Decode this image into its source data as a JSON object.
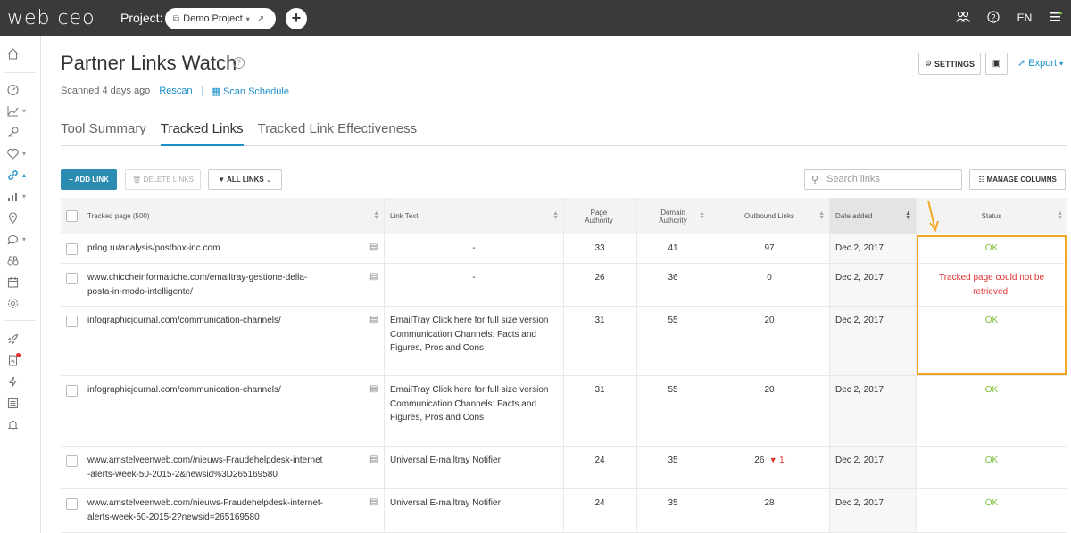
{
  "topbar": {
    "logo": "web ceo",
    "project_label": "Project:",
    "project_name": "Demo Project",
    "language": "EN"
  },
  "header": {
    "title": "Partner Links Watch",
    "scanned": "Scanned 4 days ago",
    "rescan": "Rescan",
    "separator": "|",
    "scan_schedule": "Scan Schedule",
    "settings": "SETTINGS",
    "export": "Export"
  },
  "tabs": [
    {
      "label": "Tool Summary"
    },
    {
      "label": "Tracked Links"
    },
    {
      "label": "Tracked Link Effectiveness"
    }
  ],
  "toolbar": {
    "add_link": "+ ADD LINK",
    "delete_links": "DELETE LINKS",
    "filter": "ALL LINKS",
    "search_placeholder": "Search links",
    "manage_columns": "MANAGE COLUMNS"
  },
  "table": {
    "headers": {
      "tracked_page": "Tracked page (500)",
      "link_text": "Link Text",
      "page_authority_1": "Page",
      "page_authority_2": "Authority",
      "domain_authority_1": "Domain",
      "domain_authority_2": "Authority",
      "outbound_links": "Outbound Links",
      "date_added": "Date added",
      "status": "Status"
    },
    "rows": [
      {
        "page": "prlog.ru/analysis/postbox-inc.com",
        "link_text": "-",
        "pa": "33",
        "da": "41",
        "outbound": "97",
        "date": "Dec 2, 2017",
        "status": "OK"
      },
      {
        "page": "www.chiccheinformatiche.com/emailtray-gestione-della-posta-in-modo-intelligente/",
        "link_text": "-",
        "pa": "26",
        "da": "36",
        "outbound": "0",
        "date": "Dec 2, 2017",
        "status": "Tracked page could not be retrieved."
      },
      {
        "page": "infographicjournal.com/communication-channels/",
        "link_text": "EmailTray Click here for full size version Communication Channels: Facts and Figures, Pros and Cons",
        "pa": "31",
        "da": "55",
        "outbound": "20",
        "date": "Dec 2, 2017",
        "status": "OK"
      },
      {
        "page": "infographicjournal.com/communication-channels/",
        "link_text": "EmailTray Click here for full size version Communication Channels: Facts and Figures, Pros and Cons",
        "pa": "31",
        "da": "55",
        "outbound": "20",
        "date": "Dec 2, 2017",
        "status": "OK"
      },
      {
        "page": "www.amstelveenweb.com//nieuws-Fraudehelpdesk-internet-alerts-week-50-2015-2&newsid%3D265169580",
        "link_text": "Universal E-mailtray Notifier",
        "pa": "24",
        "da": "35",
        "outbound": "26",
        "outbound_change": "1",
        "date": "Dec 2, 2017",
        "status": "OK"
      },
      {
        "page": "www.amstelveenweb.com/nieuws-Fraudehelpdesk-internet-alerts-week-50-2015-2?newsid=265169580",
        "link_text": "Universal E-mailtray Notifier",
        "pa": "24",
        "da": "35",
        "outbound": "28",
        "date": "Dec 2, 2017",
        "status": "OK"
      }
    ]
  },
  "colors": {
    "accent": "#1a8fc9",
    "ok": "#7bbf3a",
    "error": "#e03030",
    "highlight": "#f5a623",
    "topbar": "#3a3a3a"
  }
}
